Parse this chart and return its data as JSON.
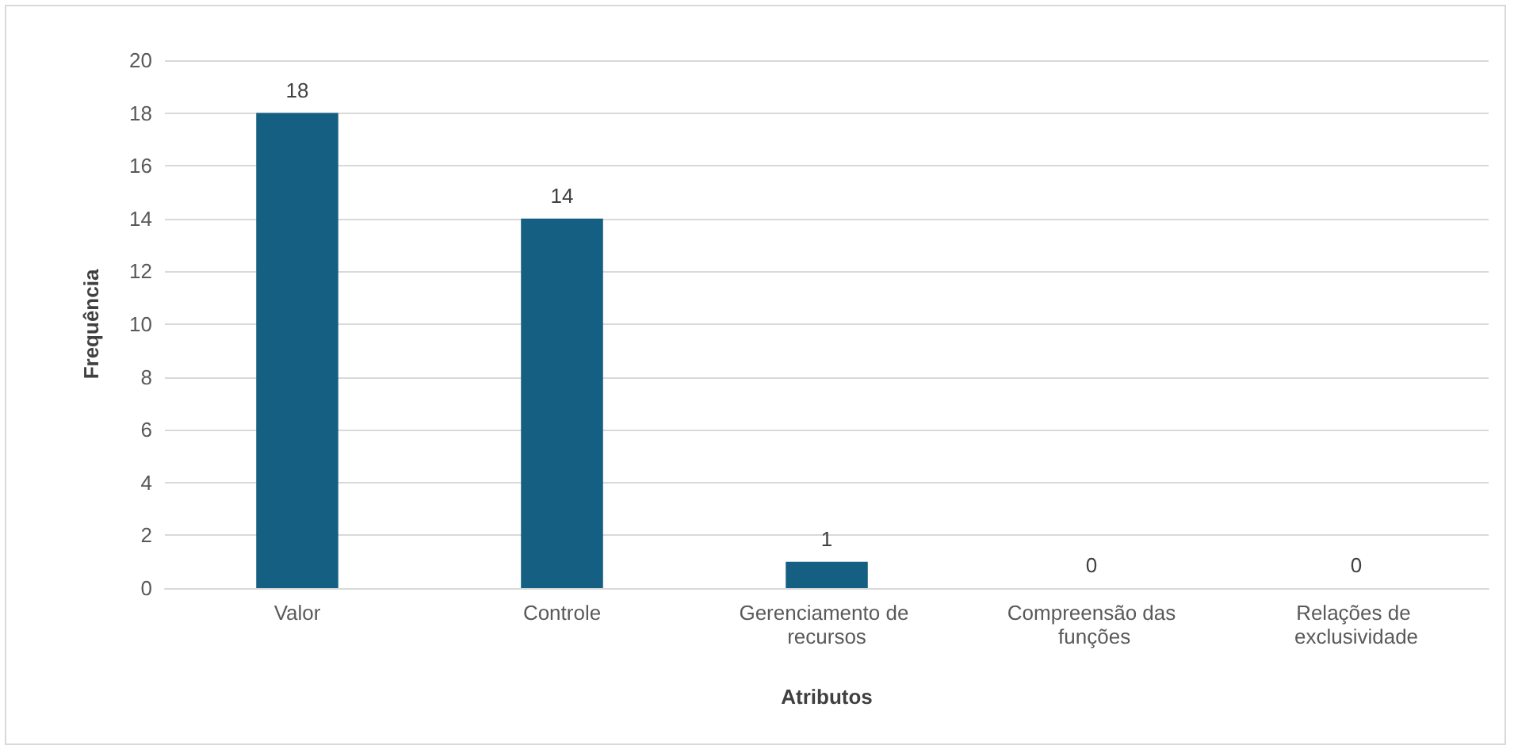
{
  "chart_data": {
    "type": "bar",
    "xlabel": "Atributos",
    "ylabel": "Frequência",
    "categories": [
      "Valor",
      "Controle",
      "Gerenciamento de recursos",
      "Compreensão das funções",
      "Relações de exclusividade"
    ],
    "values": [
      18,
      14,
      1,
      0,
      0
    ],
    "color": "#156082",
    "ylim": [
      0,
      20
    ],
    "yticks": [
      0,
      2,
      4,
      6,
      8,
      10,
      12,
      14,
      16,
      18,
      20
    ],
    "grid": "y",
    "data_labels": true
  }
}
